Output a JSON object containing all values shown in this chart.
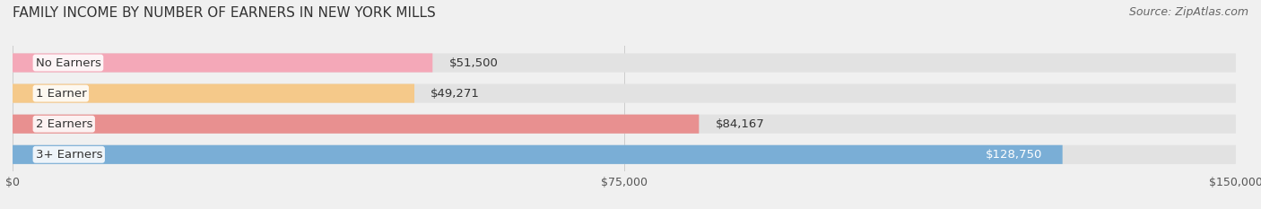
{
  "title": "FAMILY INCOME BY NUMBER OF EARNERS IN NEW YORK MILLS",
  "source": "Source: ZipAtlas.com",
  "categories": [
    "No Earners",
    "1 Earner",
    "2 Earners",
    "3+ Earners"
  ],
  "values": [
    51500,
    49271,
    84167,
    128750
  ],
  "bar_colors": [
    "#f4a8b8",
    "#f5c98a",
    "#e89090",
    "#7aaed6"
  ],
  "label_colors": [
    "#333333",
    "#333333",
    "#333333",
    "#ffffff"
  ],
  "bar_labels": [
    "$51,500",
    "$49,271",
    "$84,167",
    "$128,750"
  ],
  "xlim": [
    0,
    150000
  ],
  "xticks": [
    0,
    75000,
    150000
  ],
  "xtick_labels": [
    "$0",
    "$75,000",
    "$150,000"
  ],
  "background_color": "#f0f0f0",
  "bar_bg_color": "#e2e2e2",
  "title_fontsize": 11,
  "source_fontsize": 9,
  "bar_height": 0.62,
  "bar_label_fontsize": 9.5,
  "category_fontsize": 9.5,
  "tick_fontsize": 9
}
